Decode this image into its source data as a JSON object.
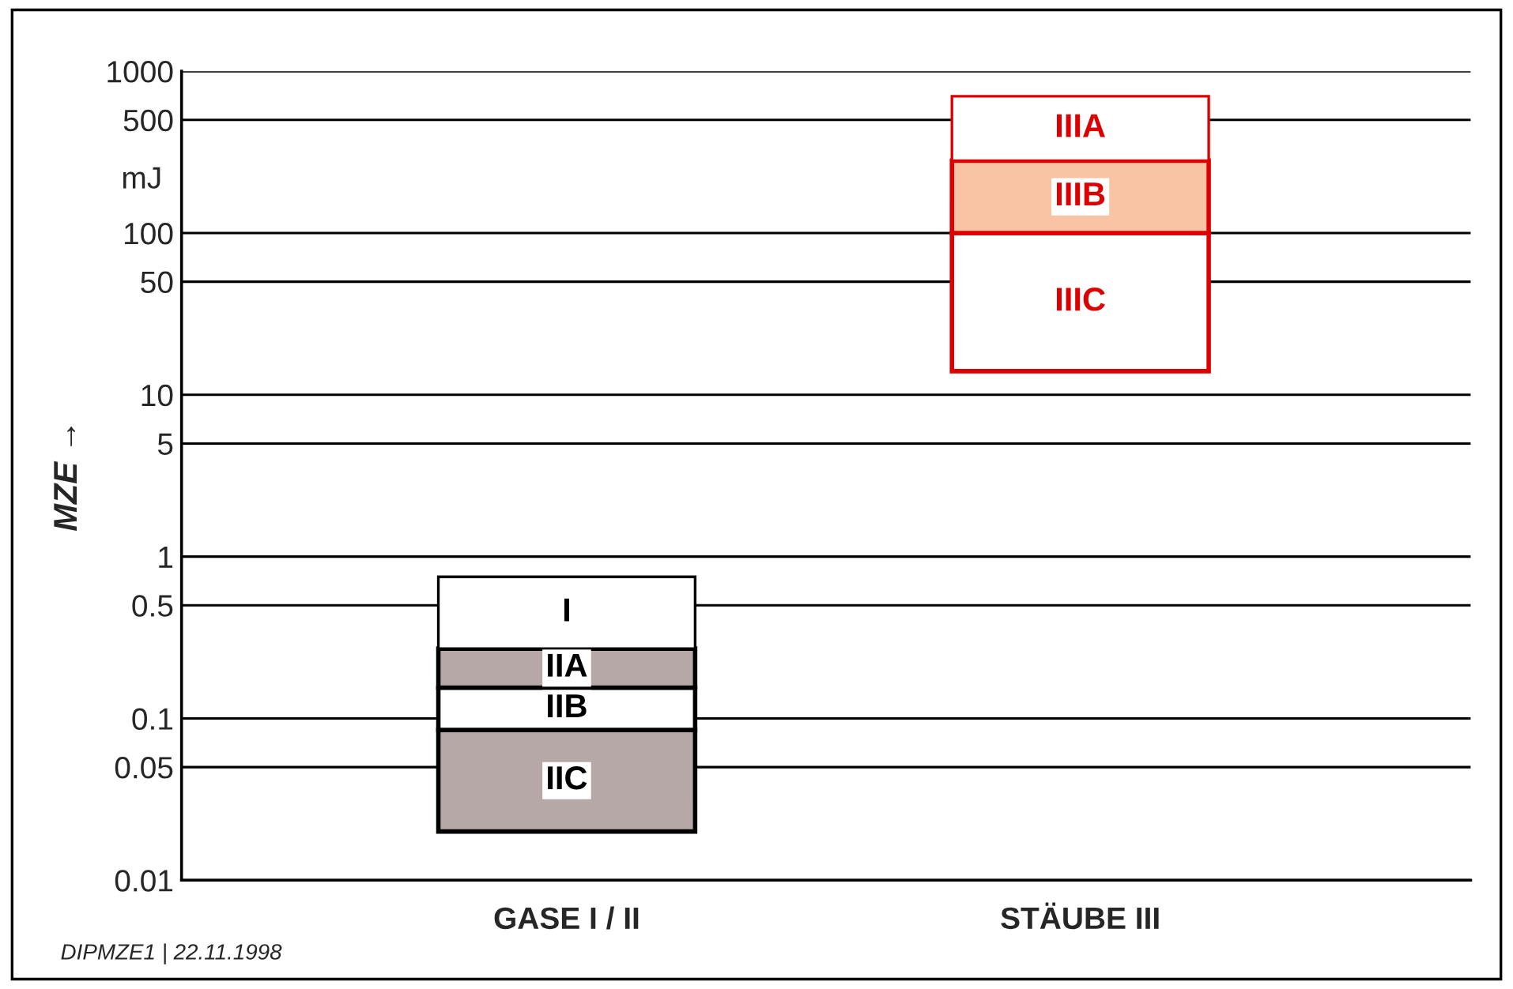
{
  "chart_data": {
    "type": "bar",
    "categories": [
      "GASE I / II",
      "STÄUBE III"
    ],
    "series": [
      {
        "colors": [
          "#b5a8a6",
          "#ffffff"
        ],
        "base": [
          0.02,
          14
        ],
        "values": [
          0.065,
          86
        ],
        "value_labels": [
          "IIC",
          "IIIC"
        ]
      },
      {
        "colors": [
          "#ffffff",
          "#f9c4a4"
        ],
        "base": [
          0.085,
          100
        ],
        "values": [
          0.07,
          180
        ],
        "value_labels": [
          "IIB",
          "IIIB"
        ]
      },
      {
        "colors": [
          "#b5a8a6",
          "#ffffff"
        ],
        "base": [
          0.155,
          280
        ],
        "values": [
          0.115,
          420
        ],
        "value_labels": [
          "IIA",
          "IIIA"
        ]
      },
      {
        "colors": [
          "#ffffff",
          null
        ],
        "base": [
          0.27,
          null
        ],
        "values": [
          0.48,
          null
        ],
        "value_labels": [
          "I",
          null
        ]
      }
    ],
    "log": "y",
    "ylim": [
      0.01,
      1000
    ],
    "yticks": [
      0.01,
      0.05,
      0.1,
      0.5,
      1,
      5,
      10,
      50,
      100,
      500,
      1000
    ],
    "ylabel": "MZE →",
    "grid": "y",
    "legend": false,
    "annotations": [
      "mJ",
      "DIPMZE1 | 22.11.1998"
    ]
  }
}
